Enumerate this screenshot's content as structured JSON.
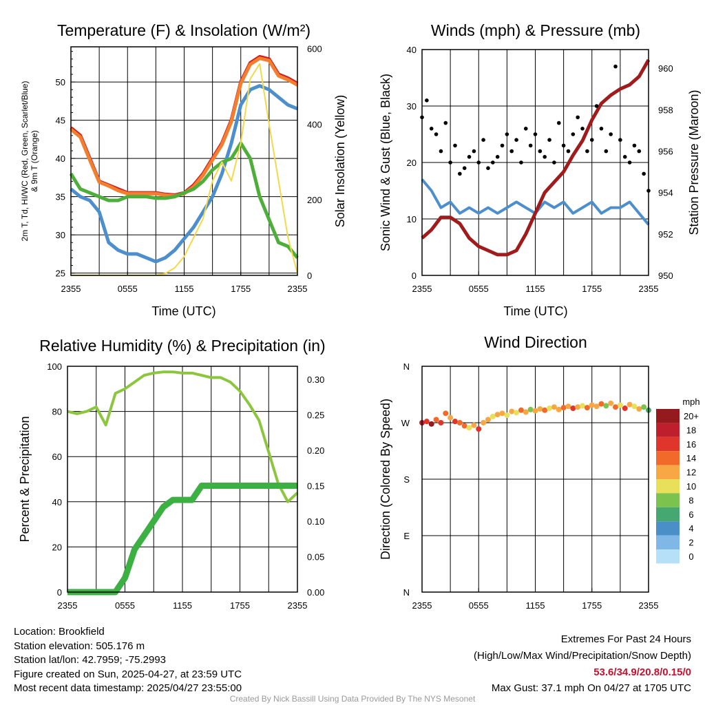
{
  "chart_data": [
    {
      "type": "line",
      "title": "Temperature (F) & Insolation (W/m²)",
      "xlabel": "Time (UTC)",
      "ylabel_line1": "2m T, Td, HI/WC (Red, Green, Scarlet/Blue)",
      "ylabel_line2": "& 9m T (Orange)",
      "y2label": "Solar Insolation (Yellow)",
      "xticks": [
        "2355",
        "0555",
        "1155",
        "1755",
        "2355"
      ],
      "yticks": [
        "25",
        "30",
        "35",
        "40",
        "45",
        "50"
      ],
      "y2ticks": [
        "0",
        "200",
        "400",
        "600"
      ],
      "ylim": [
        24.7,
        54.6
      ],
      "y2lim": [
        0,
        605
      ],
      "x_hours_since_start": [
        0,
        1,
        2,
        3,
        4,
        5,
        6,
        7,
        8,
        9,
        10,
        11,
        12,
        13,
        14,
        15,
        16,
        17,
        18,
        19,
        20,
        21,
        22,
        23,
        24
      ],
      "series": [
        {
          "name": "2m T",
          "color": "#d7191c",
          "values": [
            44,
            43,
            40,
            37,
            36.5,
            36,
            35.5,
            35.5,
            35.5,
            35.5,
            35.3,
            35.2,
            35.5,
            36.5,
            38,
            40,
            42,
            45,
            50,
            52.5,
            53.3,
            53,
            51,
            50.5,
            49.8
          ]
        },
        {
          "name": "9m T",
          "color": "#f08030",
          "values": [
            43.8,
            42.8,
            39.8,
            36.9,
            36.4,
            35.8,
            35.4,
            35.4,
            35.4,
            35.4,
            35.2,
            35.1,
            35.4,
            36.3,
            37.8,
            39.8,
            41.8,
            44.8,
            49.8,
            52.3,
            53.1,
            52.8,
            50.8,
            50.3,
            49.6
          ]
        },
        {
          "name": "Td",
          "color": "#4c8fcc",
          "values": [
            36,
            35,
            34.5,
            33,
            29,
            28,
            27.5,
            27.5,
            27,
            26.5,
            27,
            28,
            29.5,
            31,
            33,
            35,
            38,
            42,
            47,
            49,
            49.5,
            49,
            48,
            47,
            46.5
          ]
        },
        {
          "name": "HI/WC",
          "color": "#4daf3a",
          "values": [
            38,
            36,
            35.5,
            35,
            34.5,
            34.5,
            35,
            35,
            35,
            34.8,
            34.8,
            35,
            35.5,
            36,
            37,
            38.5,
            39.5,
            40,
            42,
            40,
            35,
            32,
            29,
            28.5,
            27
          ]
        },
        {
          "name": "Solar Insolation",
          "color": "#f5d84a",
          "axis": "right",
          "values": [
            0,
            0,
            0,
            0,
            0,
            0,
            0,
            0,
            0,
            0,
            5,
            20,
            50,
            100,
            150,
            250,
            300,
            250,
            350,
            520,
            560,
            400,
            250,
            100,
            5
          ]
        }
      ]
    },
    {
      "type": "line",
      "title": "Winds (mph) & Pressure (mb)",
      "xlabel": "Time (UTC)",
      "ylabel": "Sonic Wind & Gust (Blue, Black)",
      "y2label": "Station Pressure (Maroon)",
      "xticks": [
        "2355",
        "0555",
        "1155",
        "1755",
        "2355"
      ],
      "yticks": [
        "0",
        "10",
        "20",
        "30",
        "40"
      ],
      "y2ticks": [
        "950",
        "952",
        "954",
        "956",
        "958",
        "960"
      ],
      "ylim": [
        0,
        40
      ],
      "y2lim": [
        950,
        960.9
      ],
      "x_hours_since_start": [
        0,
        1,
        2,
        3,
        4,
        5,
        6,
        7,
        8,
        9,
        10,
        11,
        12,
        13,
        14,
        15,
        16,
        17,
        18,
        19,
        20,
        21,
        22,
        23,
        24
      ],
      "series": [
        {
          "name": "Sonic Wind",
          "color": "#4c8fcc",
          "values": [
            17,
            15,
            12,
            13,
            11,
            12,
            11,
            12,
            11,
            12,
            13,
            12,
            11,
            13,
            12,
            13,
            11,
            12,
            13,
            11,
            12,
            12,
            13,
            11,
            9
          ]
        },
        {
          "name": "Station Pressure",
          "color": "#a01c1c",
          "axis": "right",
          "values": [
            951.8,
            952.2,
            952.8,
            952.8,
            952.5,
            951.8,
            951.4,
            951.2,
            951,
            951,
            951.2,
            952,
            953,
            954,
            954.5,
            955,
            955.8,
            956.5,
            957.5,
            958.3,
            958.7,
            959,
            959.2,
            959.6,
            960.4
          ]
        },
        {
          "name": "Gust",
          "color": "#000000",
          "type": "scatter",
          "x_step_hours": 0.5,
          "values": [
            28,
            31,
            26,
            25,
            22,
            27,
            20,
            23,
            18,
            19,
            21,
            22,
            20,
            24,
            19,
            20,
            21,
            23,
            25,
            22,
            24,
            20,
            26,
            23,
            25,
            22,
            21,
            24,
            20,
            27,
            23,
            22,
            25,
            28,
            26,
            22,
            24,
            30,
            26,
            22,
            25,
            37,
            24,
            21,
            20,
            23,
            22,
            18,
            15
          ]
        }
      ]
    },
    {
      "type": "line",
      "title": "Relative Humidity (%) & Precipitation (in)",
      "ylabel": "Percent & Precipitation",
      "xticks": [
        "2355",
        "0555",
        "1155",
        "1755",
        "2355"
      ],
      "yticks": [
        "0",
        "20",
        "40",
        "60",
        "80",
        "100"
      ],
      "y2ticks": [
        "0.00",
        "0.05",
        "0.10",
        "0.15",
        "0.20",
        "0.25",
        "0.30"
      ],
      "ylim": [
        0,
        100
      ],
      "y2lim": [
        0,
        0.3
      ],
      "x_hours_since_start": [
        0,
        1,
        2,
        3,
        4,
        5,
        6,
        7,
        8,
        9,
        10,
        11,
        12,
        13,
        14,
        15,
        16,
        17,
        18,
        19,
        20,
        21,
        22,
        23,
        24
      ],
      "series": [
        {
          "name": "Relative Humidity",
          "color": "#8cc63f",
          "values": [
            80,
            79,
            80,
            82,
            74,
            88,
            90,
            93,
            96,
            97,
            97.5,
            97.5,
            97,
            97,
            96,
            95,
            95,
            93,
            89,
            83,
            76,
            62,
            48,
            40,
            44
          ]
        },
        {
          "name": "Precipitation",
          "color": "#3cb043",
          "axis": "right",
          "values": [
            0,
            0,
            0,
            0,
            0,
            0,
            0.02,
            0.06,
            0.08,
            0.1,
            0.12,
            0.13,
            0.13,
            0.13,
            0.15,
            0.15,
            0.15,
            0.15,
            0.15,
            0.15,
            0.15,
            0.15,
            0.15,
            0.15,
            0.15
          ]
        }
      ]
    },
    {
      "type": "scatter",
      "title": "Wind Direction",
      "ylabel": "Direction (Colored By Speed)",
      "xticks": [
        "2355",
        "0555",
        "1155",
        "1755",
        "2355"
      ],
      "yticks": [
        "N",
        "E",
        "S",
        "W",
        "N"
      ],
      "ylim": [
        0,
        360
      ],
      "x_step_hours": 0.5,
      "direction_deg": [
        270,
        272,
        268,
        275,
        270,
        285,
        278,
        272,
        270,
        265,
        262,
        266,
        260,
        270,
        275,
        280,
        283,
        285,
        282,
        288,
        286,
        290,
        287,
        291,
        289,
        292,
        290,
        293,
        295,
        291,
        294,
        296,
        293,
        295,
        297,
        294,
        298,
        296,
        300,
        297,
        301,
        295,
        298,
        293,
        299,
        296,
        292,
        295,
        290
      ],
      "speed_mph": [
        18,
        16,
        20,
        14,
        17,
        15,
        13,
        16,
        15,
        14,
        11,
        12,
        17,
        12,
        13,
        11,
        12,
        13,
        10,
        12,
        11,
        14,
        12,
        9,
        13,
        12,
        15,
        11,
        13,
        12,
        14,
        12,
        16,
        13,
        11,
        14,
        12,
        13,
        15,
        8,
        12,
        14,
        11,
        16,
        12,
        10,
        13,
        9,
        7
      ],
      "legend": {
        "title": "mph",
        "labels": [
          "20+",
          "18",
          "16",
          "14",
          "12",
          "10",
          "8",
          "6",
          "4",
          "2",
          "0"
        ],
        "colors": [
          "#951a1d",
          "#bf1e2d",
          "#e0352b",
          "#f26a2a",
          "#f8a745",
          "#e9e05a",
          "#7cc24e",
          "#46a871",
          "#4a8fc7",
          "#7fb8e6",
          "#b5e0f7"
        ]
      }
    }
  ],
  "footer": {
    "location": "Location: Brookfield",
    "elevation": "Station elevation: 505.176 m",
    "latlon": "Station lat/lon: 42.7959; -75.2993",
    "created": "Figure created on Sun, 2025-04-27, at 23:59 UTC",
    "recent": "Most recent data timestamp: 2025/04/27 23:55:00",
    "extremes_title": "Extremes For Past 24 Hours",
    "extremes_sub": "(High/Low/Max Wind/Precipitation/Snow Depth)",
    "extremes_values": "53.6/34.9/20.8/0.15/0",
    "max_gust": "Max Gust: 37.1 mph On 04/27 at 1705 UTC",
    "credit": "Created By Nick Bassill Using Data Provided By The NYS Mesonet"
  }
}
